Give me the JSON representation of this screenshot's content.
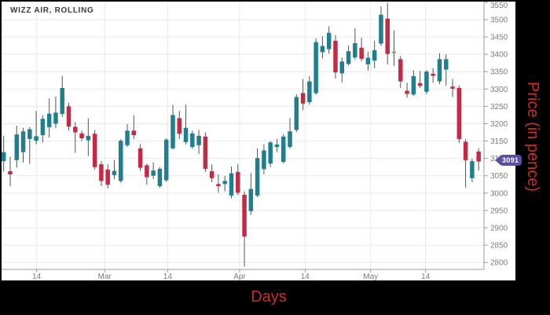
{
  "title": "WIZZ AIR, ROLLING",
  "xlabel": "Days",
  "ylabel": "Price (in pence)",
  "last_price_label": "3091",
  "colors": {
    "up": "#1f7f8e",
    "down": "#c32b45",
    "neutral": "#8f9194",
    "wick": "#50545a",
    "grid": "#e9e9e9",
    "axis": "#9b9b9b",
    "tick_text": "#7c7c7c",
    "title_text": "#3d3d3d",
    "axis_label_red": "#cb2f26",
    "badge": "#5a4fa4",
    "badge_text": "#ffffff",
    "plot_bg": "#ffffff",
    "frame": "#000000"
  },
  "chart_data": {
    "type": "candlestick",
    "title": "WIZZ AIR, ROLLING",
    "xlabel": "Days",
    "ylabel": "Price (in pence)",
    "ylim": [
      2776,
      3552
    ],
    "grid": true,
    "y_ticks": [
      3550,
      3500,
      3450,
      3400,
      3350,
      3300,
      3250,
      3200,
      3150,
      3100,
      3050,
      3000,
      2950,
      2900,
      2850,
      2800
    ],
    "x_ticks": [
      {
        "label": "14",
        "day": 5.07
      },
      {
        "label": "Mar",
        "day": 15.53
      },
      {
        "label": "14",
        "day": 25.2
      },
      {
        "label": "Apr",
        "day": 36.27
      },
      {
        "label": "14",
        "day": 46.33
      },
      {
        "label": "May",
        "day": 56.4
      },
      {
        "label": "14",
        "day": 64.85
      }
    ],
    "last_close": 3091,
    "candles_format": [
      "open",
      "high",
      "low",
      "close"
    ],
    "candles": [
      [
        3092,
        3165,
        3062,
        3118
      ],
      [
        3063,
        3105,
        3020,
        3054
      ],
      [
        3095,
        3194,
        3073,
        3169
      ],
      [
        3118,
        3188,
        3088,
        3178
      ],
      [
        3156,
        3190,
        3084,
        3184
      ],
      [
        3151,
        3237,
        3141,
        3164
      ],
      [
        3167,
        3224,
        3146,
        3214
      ],
      [
        3190,
        3273,
        3160,
        3229
      ],
      [
        3200,
        3278,
        3188,
        3232
      ],
      [
        3228,
        3338,
        3220,
        3303
      ],
      [
        3250,
        3260,
        3180,
        3192
      ],
      [
        3191,
        3205,
        3116,
        3175
      ],
      [
        3172,
        3180,
        3150,
        3158
      ],
      [
        3152,
        3216,
        3107,
        3165
      ],
      [
        3171,
        3182,
        3068,
        3075
      ],
      [
        3083,
        3092,
        3020,
        3035
      ],
      [
        3068,
        3083,
        3013,
        3024
      ],
      [
        3052,
        3095,
        3040,
        3064
      ],
      [
        3035,
        3155,
        3030,
        3151
      ],
      [
        3138,
        3199,
        3133,
        3180
      ],
      [
        3180,
        3224,
        3156,
        3167
      ],
      [
        3129,
        3141,
        3064,
        3073
      ],
      [
        3080,
        3085,
        3024,
        3046
      ],
      [
        3050,
        3088,
        3040,
        3065
      ],
      [
        3020,
        3075,
        3015,
        3070
      ],
      [
        3037,
        3158,
        3032,
        3154
      ],
      [
        3129,
        3254,
        3125,
        3225
      ],
      [
        3216,
        3237,
        3156,
        3171
      ],
      [
        3147,
        3255,
        3140,
        3188
      ],
      [
        3133,
        3180,
        3128,
        3172
      ],
      [
        3138,
        3182,
        3113,
        3165
      ],
      [
        3163,
        3175,
        3061,
        3070
      ],
      [
        3063,
        3083,
        3031,
        3043
      ],
      [
        3026,
        3054,
        3001,
        3020
      ],
      [
        3026,
        3050,
        3005,
        3035
      ],
      [
        2993,
        3077,
        2985,
        3057
      ],
      [
        3061,
        3084,
        2994,
        3001
      ],
      [
        2995,
        3005,
        2788,
        2875
      ],
      [
        2948,
        3058,
        2937,
        3012
      ],
      [
        2993,
        3129,
        2988,
        3101
      ],
      [
        3069,
        3141,
        3054,
        3123
      ],
      [
        3085,
        3150,
        3075,
        3146
      ],
      [
        3133,
        3156,
        3118,
        3140
      ],
      [
        3090,
        3170,
        3085,
        3163
      ],
      [
        3133,
        3216,
        3128,
        3178
      ],
      [
        3182,
        3285,
        3175,
        3277
      ],
      [
        3288,
        3329,
        3239,
        3258
      ],
      [
        3262,
        3337,
        3255,
        3322
      ],
      [
        3288,
        3446,
        3283,
        3435
      ],
      [
        3406,
        3452,
        3388,
        3424
      ],
      [
        3415,
        3481,
        3402,
        3462
      ],
      [
        3439,
        3455,
        3330,
        3348
      ],
      [
        3345,
        3391,
        3319,
        3379
      ],
      [
        3372,
        3425,
        3368,
        3409
      ],
      [
        3391,
        3475,
        3385,
        3432
      ],
      [
        3419,
        3448,
        3380,
        3387
      ],
      [
        3371,
        3408,
        3353,
        3390
      ],
      [
        3382,
        3439,
        3360,
        3412
      ],
      [
        3431,
        3538,
        3424,
        3514
      ],
      [
        3503,
        3548,
        3371,
        3401
      ],
      [
        3408,
        3469,
        3367,
        3408
      ],
      [
        3386,
        3395,
        3303,
        3322
      ],
      [
        3295,
        3318,
        3275,
        3286
      ],
      [
        3284,
        3354,
        3280,
        3337
      ],
      [
        3317,
        3352,
        3303,
        3309
      ],
      [
        3292,
        3355,
        3285,
        3350
      ],
      [
        3344,
        3360,
        3318,
        3338
      ],
      [
        3322,
        3403,
        3314,
        3386
      ],
      [
        3356,
        3400,
        3310,
        3386
      ],
      [
        3307,
        3329,
        3277,
        3301
      ],
      [
        3303,
        3310,
        3144,
        3156
      ],
      [
        3148,
        3155,
        3016,
        3095
      ],
      [
        3043,
        3099,
        3031,
        3092
      ],
      [
        3120,
        3129,
        3065,
        3091
      ]
    ]
  }
}
